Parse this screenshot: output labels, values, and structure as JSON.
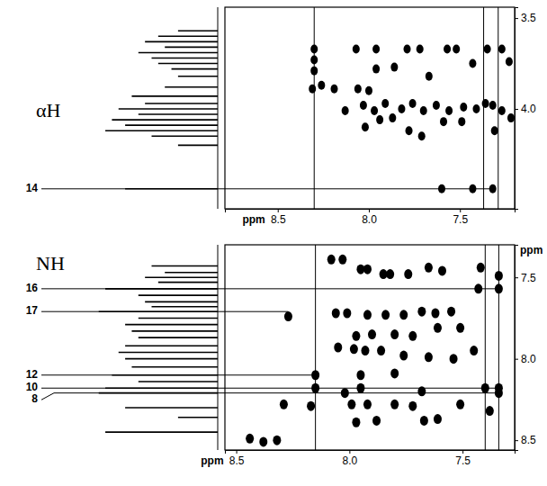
{
  "chart_data": [
    {
      "type": "scatter",
      "label": "αH",
      "x_label": "ppm",
      "xlim": [
        8.79,
        7.2
      ],
      "ylim": [
        3.44,
        4.55
      ],
      "xticks": [
        8.5,
        {
          "value": 8,
          "label": "8.0"
        },
        7.5
      ],
      "yticks": [
        3.5,
        {
          "value": 4,
          "label": "4.0"
        }
      ],
      "marker": "ellipse",
      "color": "#000000",
      "x": [
        8.3,
        8.3,
        8.3,
        8.31,
        8.26,
        8.07,
        7.96,
        7.79,
        7.72,
        7.57,
        7.52,
        7.35,
        7.27,
        7.96,
        7.86,
        7.67,
        7.43,
        7.23,
        8.06,
        8.0,
        8.19,
        8.13,
        8.03,
        7.97,
        7.91,
        7.82,
        7.76,
        7.7,
        7.63,
        7.56,
        7.48,
        7.41,
        7.36,
        7.32,
        7.27,
        7.22,
        8.02,
        7.94,
        7.87,
        7.78,
        7.71,
        7.59,
        7.49,
        7.31,
        7.6,
        7.43,
        7.32
      ],
      "y": [
        3.67,
        3.73,
        3.79,
        3.89,
        3.87,
        3.67,
        3.67,
        3.67,
        3.67,
        3.67,
        3.67,
        3.67,
        3.67,
        3.78,
        3.77,
        3.82,
        3.75,
        3.74,
        3.89,
        3.9,
        3.89,
        4.01,
        3.98,
        4.01,
        3.97,
        4.0,
        3.97,
        4.01,
        3.98,
        4.01,
        3.99,
        4.0,
        3.97,
        3.98,
        4.01,
        4.05,
        4.1,
        4.06,
        4.05,
        4.12,
        4.15,
        4.07,
        4.07,
        4.12,
        4.44,
        4.44,
        4.44
      ],
      "spectrum": {
        "intensity_lim": [
          0,
          100
        ],
        "ppm": [
          3.57,
          3.6,
          3.63,
          3.66,
          3.69,
          3.72,
          3.75,
          3.78,
          3.82,
          3.88,
          3.93,
          3.97,
          4.0,
          4.03,
          4.06,
          4.09,
          4.12,
          4.15,
          4.2,
          4.44
        ],
        "intensity": [
          30,
          45,
          55,
          40,
          60,
          50,
          45,
          35,
          30,
          40,
          65,
          55,
          75,
          60,
          80,
          70,
          85,
          50,
          30,
          70
        ]
      },
      "annotations": [
        {
          "text": "14",
          "y": 4.44,
          "x_end": 7.32
        }
      ],
      "vlines": [
        8.3,
        7.37,
        7.29
      ]
    },
    {
      "type": "scatter",
      "label": "NH",
      "x_label": "ppm",
      "y_label": "ppm",
      "xlim": [
        8.55,
        7.27
      ],
      "ylim": [
        7.3,
        8.56
      ],
      "xticks": [
        8.5,
        {
          "value": 8,
          "label": "8.0"
        },
        7.5
      ],
      "yticks": [
        7.5,
        {
          "value": 8,
          "label": "8.0"
        },
        8.5
      ],
      "marker": "ellipse",
      "color": "#000000",
      "x": [
        8.08,
        8.03,
        7.95,
        7.92,
        7.85,
        7.82,
        7.74,
        7.65,
        7.59,
        7.42,
        7.34,
        7.43,
        7.34,
        8.27,
        8.06,
        8.01,
        7.92,
        7.84,
        7.76,
        7.68,
        7.62,
        7.55,
        7.97,
        7.9,
        7.8,
        7.72,
        7.61,
        7.51,
        8.05,
        7.98,
        7.93,
        7.86,
        7.76,
        7.65,
        7.54,
        7.45,
        8.15,
        7.95,
        7.8,
        8.15,
        7.95,
        7.4,
        7.34,
        8.02,
        7.68,
        7.34,
        8.29,
        8.17,
        7.99,
        7.92,
        7.8,
        7.72,
        7.51,
        7.38,
        7.97,
        7.88,
        7.67,
        7.61,
        8.44,
        8.38,
        8.32
      ],
      "y": [
        7.39,
        7.39,
        7.45,
        7.45,
        7.48,
        7.48,
        7.48,
        7.44,
        7.46,
        7.44,
        7.49,
        7.57,
        7.57,
        7.74,
        7.72,
        7.72,
        7.73,
        7.73,
        7.73,
        7.71,
        7.72,
        7.71,
        7.86,
        7.85,
        7.85,
        7.86,
        7.81,
        7.81,
        7.93,
        7.94,
        7.95,
        7.95,
        7.98,
        7.99,
        8.0,
        7.95,
        8.1,
        8.1,
        8.09,
        8.18,
        8.18,
        8.18,
        8.18,
        8.21,
        8.2,
        8.21,
        8.28,
        8.29,
        8.28,
        8.28,
        8.28,
        8.29,
        8.28,
        8.32,
        8.39,
        8.38,
        8.38,
        8.37,
        8.49,
        8.51,
        8.5
      ],
      "spectrum": {
        "intensity_lim": [
          0,
          100
        ],
        "ppm": [
          7.43,
          7.47,
          7.5,
          7.53,
          7.57,
          7.61,
          7.65,
          7.68,
          7.71,
          7.75,
          7.79,
          7.83,
          7.87,
          7.92,
          7.96,
          8.0,
          8.05,
          8.1,
          8.14,
          8.18,
          8.21,
          8.3,
          8.36,
          8.45
        ],
        "intensity": [
          50,
          40,
          55,
          45,
          85,
          60,
          55,
          50,
          90,
          60,
          70,
          65,
          60,
          70,
          75,
          70,
          65,
          80,
          60,
          85,
          90,
          70,
          30,
          85
        ]
      },
      "annotations": [
        {
          "text": "16",
          "y": 7.57,
          "x_end": 7.34
        },
        {
          "text": "17",
          "y": 7.71,
          "x_end": 8.27
        },
        {
          "text": "12",
          "y": 8.1,
          "x_end": 8.15
        },
        {
          "text": "10",
          "y": 8.18,
          "x_end": 7.34
        },
        {
          "text": "8",
          "y": 8.21,
          "x_end": 7.34
        }
      ],
      "vlines": [
        8.15,
        7.4,
        7.34
      ]
    }
  ]
}
